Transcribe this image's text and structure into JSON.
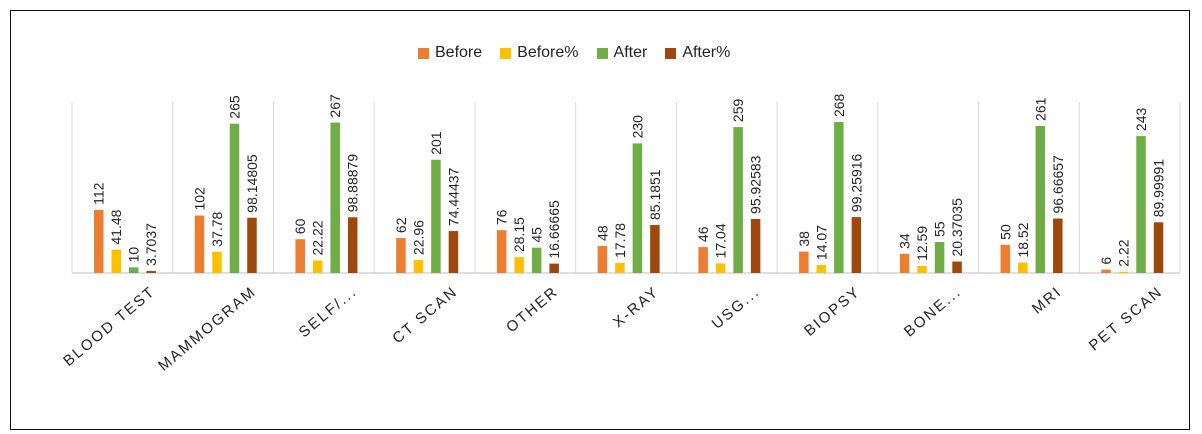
{
  "chart_data": {
    "type": "bar",
    "categories": [
      "BLOOD TEST",
      "MAMMOGRAM",
      "SELF/...",
      "CT SCAN",
      "OTHER",
      "X-RAY",
      "USG...",
      "BIOPSY",
      "BONE...",
      "MRI",
      "PET SCAN"
    ],
    "series": [
      {
        "name": "Before",
        "color": "#ED7D31",
        "values": [
          112,
          102,
          60,
          62,
          76,
          48,
          46,
          38,
          34,
          50,
          6
        ],
        "labels": [
          "112",
          "102",
          "60",
          "62",
          "76",
          "48",
          "46",
          "38",
          "34",
          "50",
          "6"
        ]
      },
      {
        "name": "Before%",
        "color": "#FFC000",
        "values": [
          41.48,
          37.78,
          22.22,
          22.96,
          28.15,
          17.78,
          17.04,
          14.07,
          12.59,
          18.52,
          2.22
        ],
        "labels": [
          "41.48",
          "37.78",
          "22.22",
          "22.96",
          "28.15",
          "17.78",
          "17.04",
          "14.07",
          "12.59",
          "18.52",
          "2.22"
        ]
      },
      {
        "name": "After",
        "color": "#70AD47",
        "values": [
          10,
          265,
          267,
          201,
          45,
          230,
          259,
          268,
          55,
          261,
          243
        ],
        "labels": [
          "10",
          "265",
          "267",
          "201",
          "45",
          "230",
          "259",
          "268",
          "55",
          "261",
          "243"
        ]
      },
      {
        "name": "After%",
        "color": "#9E480E",
        "values": [
          3.7037,
          98.14805,
          98.88879,
          74.44437,
          16.66665,
          85.1851,
          95.92583,
          99.25916,
          20.37035,
          96.66657,
          89.99991
        ],
        "labels": [
          "3.7037",
          "98.14805",
          "98.88879",
          "74.44437",
          "16.66665",
          "85.1851",
          "95.92583",
          "99.25916",
          "20.37035",
          "96.66657",
          "89.99991"
        ]
      }
    ],
    "ylim": [
      0,
      268
    ],
    "grid": false,
    "legend_position": "top-center"
  }
}
